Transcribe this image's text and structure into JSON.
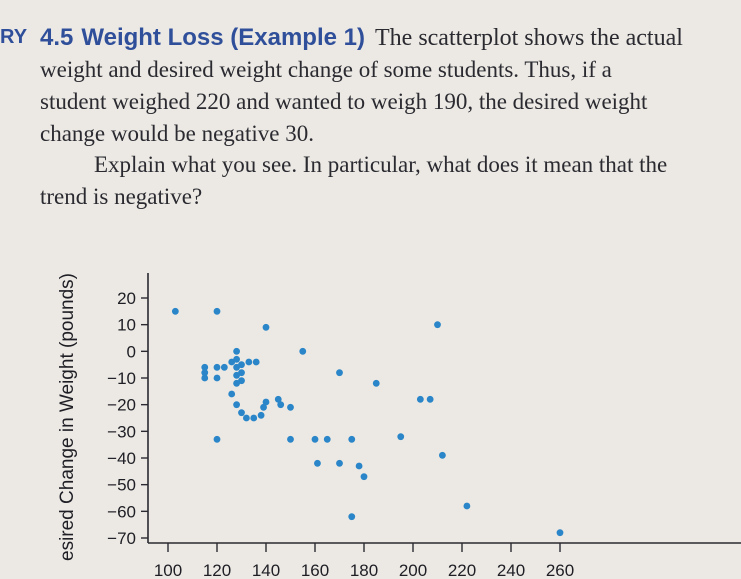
{
  "exercise": {
    "prefix": "RY",
    "number": "4.5",
    "title": "Weight Loss (Example 1)",
    "text_lines": [
      "The scatterplot shows the actual",
      "weight and desired weight change of some students. Thus, if a",
      "student weighed 220 and wanted to weigh 190, the desired weight",
      "change would be negative 30."
    ],
    "question_lines": [
      "Explain what you see. In particular, what does it mean that the",
      "trend is negative?"
    ]
  },
  "chart_data": {
    "type": "scatter",
    "ylabel": "esired Change in Weight (pounds)",
    "xlabel": "",
    "y_ticks": [
      20,
      10,
      0,
      -10,
      -20,
      -30,
      -40,
      -50,
      -60,
      -70
    ],
    "y_tick_labels": [
      "20",
      "10",
      "0",
      "−10",
      "−20",
      "−30",
      "−40",
      "−50",
      "−60",
      "−70"
    ],
    "x_ticks": [
      100,
      120,
      140,
      160,
      180,
      200,
      220,
      240,
      260
    ],
    "x_tick_labels": [
      "100",
      "120",
      "140",
      "160",
      "180",
      "200",
      "220",
      "240",
      "260"
    ],
    "xlim": [
      100,
      260
    ],
    "ylim": [
      -70,
      20
    ],
    "marker_color": "#2a86c8",
    "points": [
      {
        "x": 103,
        "y": 15
      },
      {
        "x": 120,
        "y": 15
      },
      {
        "x": 115,
        "y": -6
      },
      {
        "x": 115,
        "y": -8
      },
      {
        "x": 115,
        "y": -10
      },
      {
        "x": 120,
        "y": -6
      },
      {
        "x": 120,
        "y": -10
      },
      {
        "x": 123,
        "y": -6
      },
      {
        "x": 126,
        "y": -4
      },
      {
        "x": 128,
        "y": -3
      },
      {
        "x": 128,
        "y": -6
      },
      {
        "x": 128,
        "y": -9
      },
      {
        "x": 128,
        "y": -12
      },
      {
        "x": 130,
        "y": -5
      },
      {
        "x": 130,
        "y": -8
      },
      {
        "x": 130,
        "y": -11
      },
      {
        "x": 133,
        "y": -4
      },
      {
        "x": 136,
        "y": -4
      },
      {
        "x": 128,
        "y": 0
      },
      {
        "x": 126,
        "y": -16
      },
      {
        "x": 128,
        "y": -20
      },
      {
        "x": 130,
        "y": -23
      },
      {
        "x": 132,
        "y": -25
      },
      {
        "x": 135,
        "y": -25
      },
      {
        "x": 138,
        "y": -24
      },
      {
        "x": 139,
        "y": -21
      },
      {
        "x": 140,
        "y": -19
      },
      {
        "x": 145,
        "y": -18
      },
      {
        "x": 146,
        "y": -20
      },
      {
        "x": 150,
        "y": -21
      },
      {
        "x": 120,
        "y": -33
      },
      {
        "x": 150,
        "y": -33
      },
      {
        "x": 160,
        "y": -33
      },
      {
        "x": 165,
        "y": -33
      },
      {
        "x": 175,
        "y": -33
      },
      {
        "x": 195,
        "y": -32
      },
      {
        "x": 161,
        "y": -42
      },
      {
        "x": 170,
        "y": -42
      },
      {
        "x": 178,
        "y": -43
      },
      {
        "x": 175,
        "y": -62
      },
      {
        "x": 180,
        "y": -47
      },
      {
        "x": 140,
        "y": 9
      },
      {
        "x": 155,
        "y": 0
      },
      {
        "x": 170,
        "y": -8
      },
      {
        "x": 185,
        "y": -12
      },
      {
        "x": 203,
        "y": -18
      },
      {
        "x": 207,
        "y": -18
      },
      {
        "x": 210,
        "y": 10
      },
      {
        "x": 212,
        "y": -39
      },
      {
        "x": 222,
        "y": -58
      },
      {
        "x": 260,
        "y": -68
      }
    ]
  }
}
